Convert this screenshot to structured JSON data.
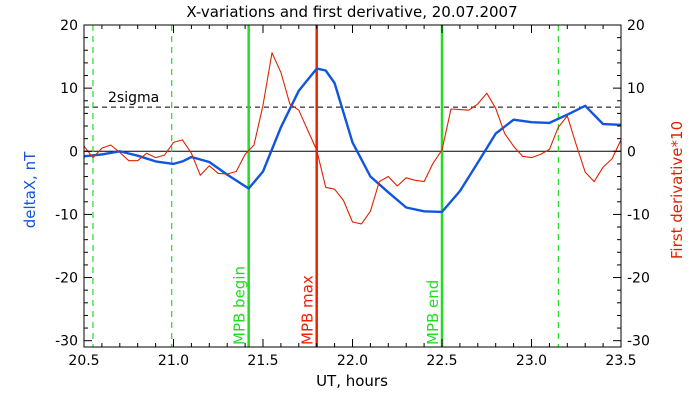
{
  "chart_data": {
    "type": "line",
    "title": "X-variations and first derivative, 20.07.2007",
    "xlabel": "UT, hours",
    "ylabel_left": "deltaX, nT",
    "ylabel_right": "First derivative*10",
    "xlim": [
      20.5,
      23.5
    ],
    "ylim": [
      -31,
      20
    ],
    "x_ticks": [
      "20.5",
      "21.0",
      "21.5",
      "22.0",
      "22.5",
      "23.0",
      "23.5"
    ],
    "y_ticks_left": [
      "20",
      "10",
      "0",
      "-10",
      "-20",
      "-30"
    ],
    "y_ticks_right": [
      "20",
      "10",
      "0",
      "-10",
      "-20",
      "-30"
    ],
    "grid": false,
    "threshold": {
      "label": "2sigma",
      "value": 7
    },
    "vertical_markers": [
      {
        "x": 20.55,
        "label": "",
        "color": "#22dd22",
        "style": "dashed"
      },
      {
        "x": 20.99,
        "label": "",
        "color": "#22dd22",
        "style": "dashed"
      },
      {
        "x": 21.42,
        "label": "MPB begin",
        "color": "#22dd22",
        "style": "solid"
      },
      {
        "x": 21.8,
        "label": "MPB max",
        "color": "#ee2200",
        "style": "solid"
      },
      {
        "x": 22.5,
        "label": "MPB end",
        "color": "#22dd22",
        "style": "solid"
      },
      {
        "x": 23.15,
        "label": "",
        "color": "#22dd22",
        "style": "dashed"
      }
    ],
    "series": [
      {
        "color": "#1155dd",
        "x": [
          20.5,
          20.6,
          20.7,
          20.8,
          20.9,
          21.0,
          21.05,
          21.1,
          21.2,
          21.3,
          21.42,
          21.5,
          21.6,
          21.7,
          21.8,
          21.85,
          21.9,
          22.0,
          22.1,
          22.2,
          22.3,
          22.4,
          22.5,
          22.6,
          22.7,
          22.8,
          22.9,
          23.0,
          23.1,
          23.2,
          23.3,
          23.4,
          23.5
        ],
        "y": [
          -0.8,
          -0.5,
          0,
          -0.7,
          -1.6,
          -2.0,
          -1.6,
          -0.9,
          -1.7,
          -3.7,
          -5.9,
          -3.2,
          3.8,
          9.6,
          13.1,
          12.8,
          10.8,
          1.4,
          -4.0,
          -6.5,
          -8.9,
          -9.5,
          -9.6,
          -6.3,
          -1.8,
          2.8,
          5.0,
          4.6,
          4.5,
          5.8,
          7.2,
          4.3,
          4.2
        ]
      },
      {
        "color": "#dd2200",
        "x": [
          20.5,
          20.55,
          20.6,
          20.65,
          20.7,
          20.75,
          20.8,
          20.85,
          20.9,
          20.95,
          21.0,
          21.05,
          21.1,
          21.15,
          21.2,
          21.25,
          21.3,
          21.35,
          21.4,
          21.45,
          21.5,
          21.55,
          21.6,
          21.65,
          21.7,
          21.75,
          21.8,
          21.85,
          21.9,
          21.95,
          22.0,
          22.05,
          22.1,
          22.15,
          22.2,
          22.25,
          22.3,
          22.35,
          22.4,
          22.45,
          22.5,
          22.55,
          22.6,
          22.65,
          22.7,
          22.75,
          22.8,
          22.85,
          22.9,
          22.95,
          23.0,
          23.05,
          23.1,
          23.15,
          23.2,
          23.25,
          23.3,
          23.35,
          23.4,
          23.45,
          23.5
        ],
        "y": [
          0.8,
          -1.0,
          0.5,
          1.0,
          -0.2,
          -1.5,
          -1.5,
          -0.3,
          -1.0,
          -0.6,
          1.4,
          1.8,
          -0.3,
          -3.8,
          -2.3,
          -3.5,
          -3.6,
          -3.2,
          -0.5,
          1.0,
          7.3,
          15.6,
          12.5,
          7.5,
          6.5,
          3.3,
          0.2,
          -5.7,
          -6.0,
          -7.8,
          -11.2,
          -11.5,
          -9.5,
          -4.8,
          -4.0,
          -5.5,
          -4.2,
          -4.6,
          -4.8,
          -1.9,
          0.2,
          6.7,
          6.6,
          6.5,
          7.5,
          9.2,
          6.8,
          2.8,
          0.8,
          -0.8,
          -1.0,
          -0.5,
          0.3,
          3.8,
          5.6,
          1.0,
          -3.3,
          -4.8,
          -2.5,
          -1.2,
          1.8
        ]
      }
    ]
  }
}
